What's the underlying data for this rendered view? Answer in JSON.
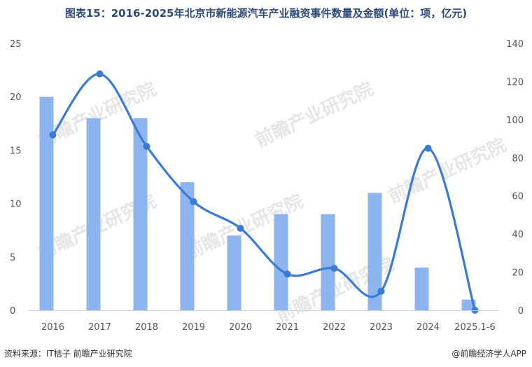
{
  "title": "图表15：2016-2025年北京市新能源汽车产业融资事件数量及金额(单位：项，亿元)",
  "source": "资料来源：IT桔子 前瞻产业研究院",
  "credit": "@前瞻经济学人APP",
  "watermark": "前瞻产业研究院",
  "colors": {
    "bar": "#8db4ee",
    "line": "#3a7bd5",
    "title": "#2e4a7a"
  },
  "chart_data": {
    "type": "bar",
    "categories": [
      "2016",
      "2017",
      "2018",
      "2019",
      "2020",
      "2021",
      "2022",
      "2023",
      "2024",
      "2025.1-6"
    ],
    "series": [
      {
        "type": "bar",
        "axis": "left",
        "values": [
          20,
          18,
          18,
          12,
          7,
          9,
          9,
          11,
          4,
          1
        ]
      },
      {
        "type": "line",
        "axis": "right",
        "values": [
          92,
          124,
          86,
          57,
          43,
          19,
          22,
          10,
          85,
          0
        ]
      }
    ],
    "ylim_left": [
      0,
      25
    ],
    "yticks_left": [
      0,
      5,
      10,
      15,
      20,
      25
    ],
    "ylim_right": [
      0,
      140
    ],
    "yticks_right": [
      0,
      20,
      40,
      60,
      80,
      100,
      120,
      140
    ],
    "grid": false,
    "legend": "none"
  }
}
